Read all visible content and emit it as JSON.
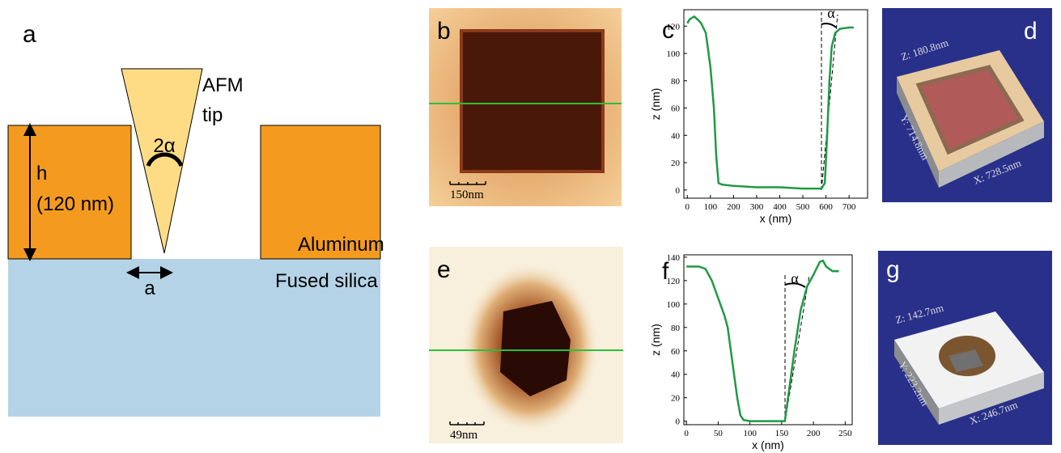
{
  "panel_a": {
    "label": "a",
    "tip_line_1": "AFM",
    "tip_line_2": "tip",
    "angle": "2α",
    "height_symbol": "h",
    "height_value": "(120 nm)",
    "metal": "Aluminum",
    "substrate": "Fused silica",
    "width_symbol": "a"
  },
  "panel_b": {
    "label": "b",
    "scale_bar": "150nm"
  },
  "panel_d": {
    "label": "d",
    "z_size": "Z: 180.8nm",
    "y_size": "Y: 714.8nm",
    "x_size": "X: 728.5nm"
  },
  "panel_e": {
    "label": "e",
    "scale_bar": "49nm"
  },
  "panel_g": {
    "label": "g",
    "z_size": "Z: 142.7nm",
    "y_size": "Y: 223.2nm",
    "x_size": "X: 246.7nm"
  },
  "chart_data": [
    {
      "type": "line",
      "label": "c",
      "annotation": "α",
      "x_label": "x (nm)",
      "y_label": "z (nm)",
      "color": "#1f9a44",
      "x": [
        0,
        10,
        30,
        50,
        60,
        80,
        100,
        115,
        125,
        135,
        150,
        200,
        300,
        400,
        500,
        580,
        595,
        605,
        615,
        625,
        640,
        660,
        700,
        720
      ],
      "values": [
        122,
        125,
        127,
        124,
        122,
        115,
        90,
        60,
        25,
        5,
        4,
        3,
        2,
        2,
        1,
        1,
        5,
        40,
        80,
        105,
        115,
        118,
        119,
        119
      ],
      "xlim": [
        -15,
        780
      ],
      "ylim": [
        -6,
        132
      ],
      "xticks": [
        0,
        100,
        200,
        300,
        400,
        500,
        600,
        700
      ],
      "yticks": [
        0,
        20,
        40,
        60,
        80,
        100,
        120
      ]
    },
    {
      "type": "line",
      "label": "f",
      "annotation": "α",
      "x_label": "x (nm)",
      "y_label": "z (nm)",
      "color": "#1f9a44",
      "x": [
        0,
        20,
        30,
        40,
        50,
        60,
        65,
        70,
        75,
        80,
        85,
        90,
        100,
        150,
        155,
        160,
        170,
        180,
        190,
        200,
        210,
        215,
        220,
        230,
        240
      ],
      "values": [
        132,
        132,
        130,
        120,
        105,
        90,
        80,
        60,
        40,
        20,
        5,
        1,
        0,
        0,
        0,
        20,
        60,
        95,
        115,
        125,
        136,
        137,
        132,
        128,
        128
      ],
      "xlim": [
        -4,
        261
      ],
      "ylim": [
        -3,
        142
      ],
      "xticks": [
        0,
        50,
        100,
        150,
        200,
        250
      ],
      "yticks": [
        0,
        20,
        40,
        60,
        80,
        100,
        120,
        140
      ]
    }
  ]
}
